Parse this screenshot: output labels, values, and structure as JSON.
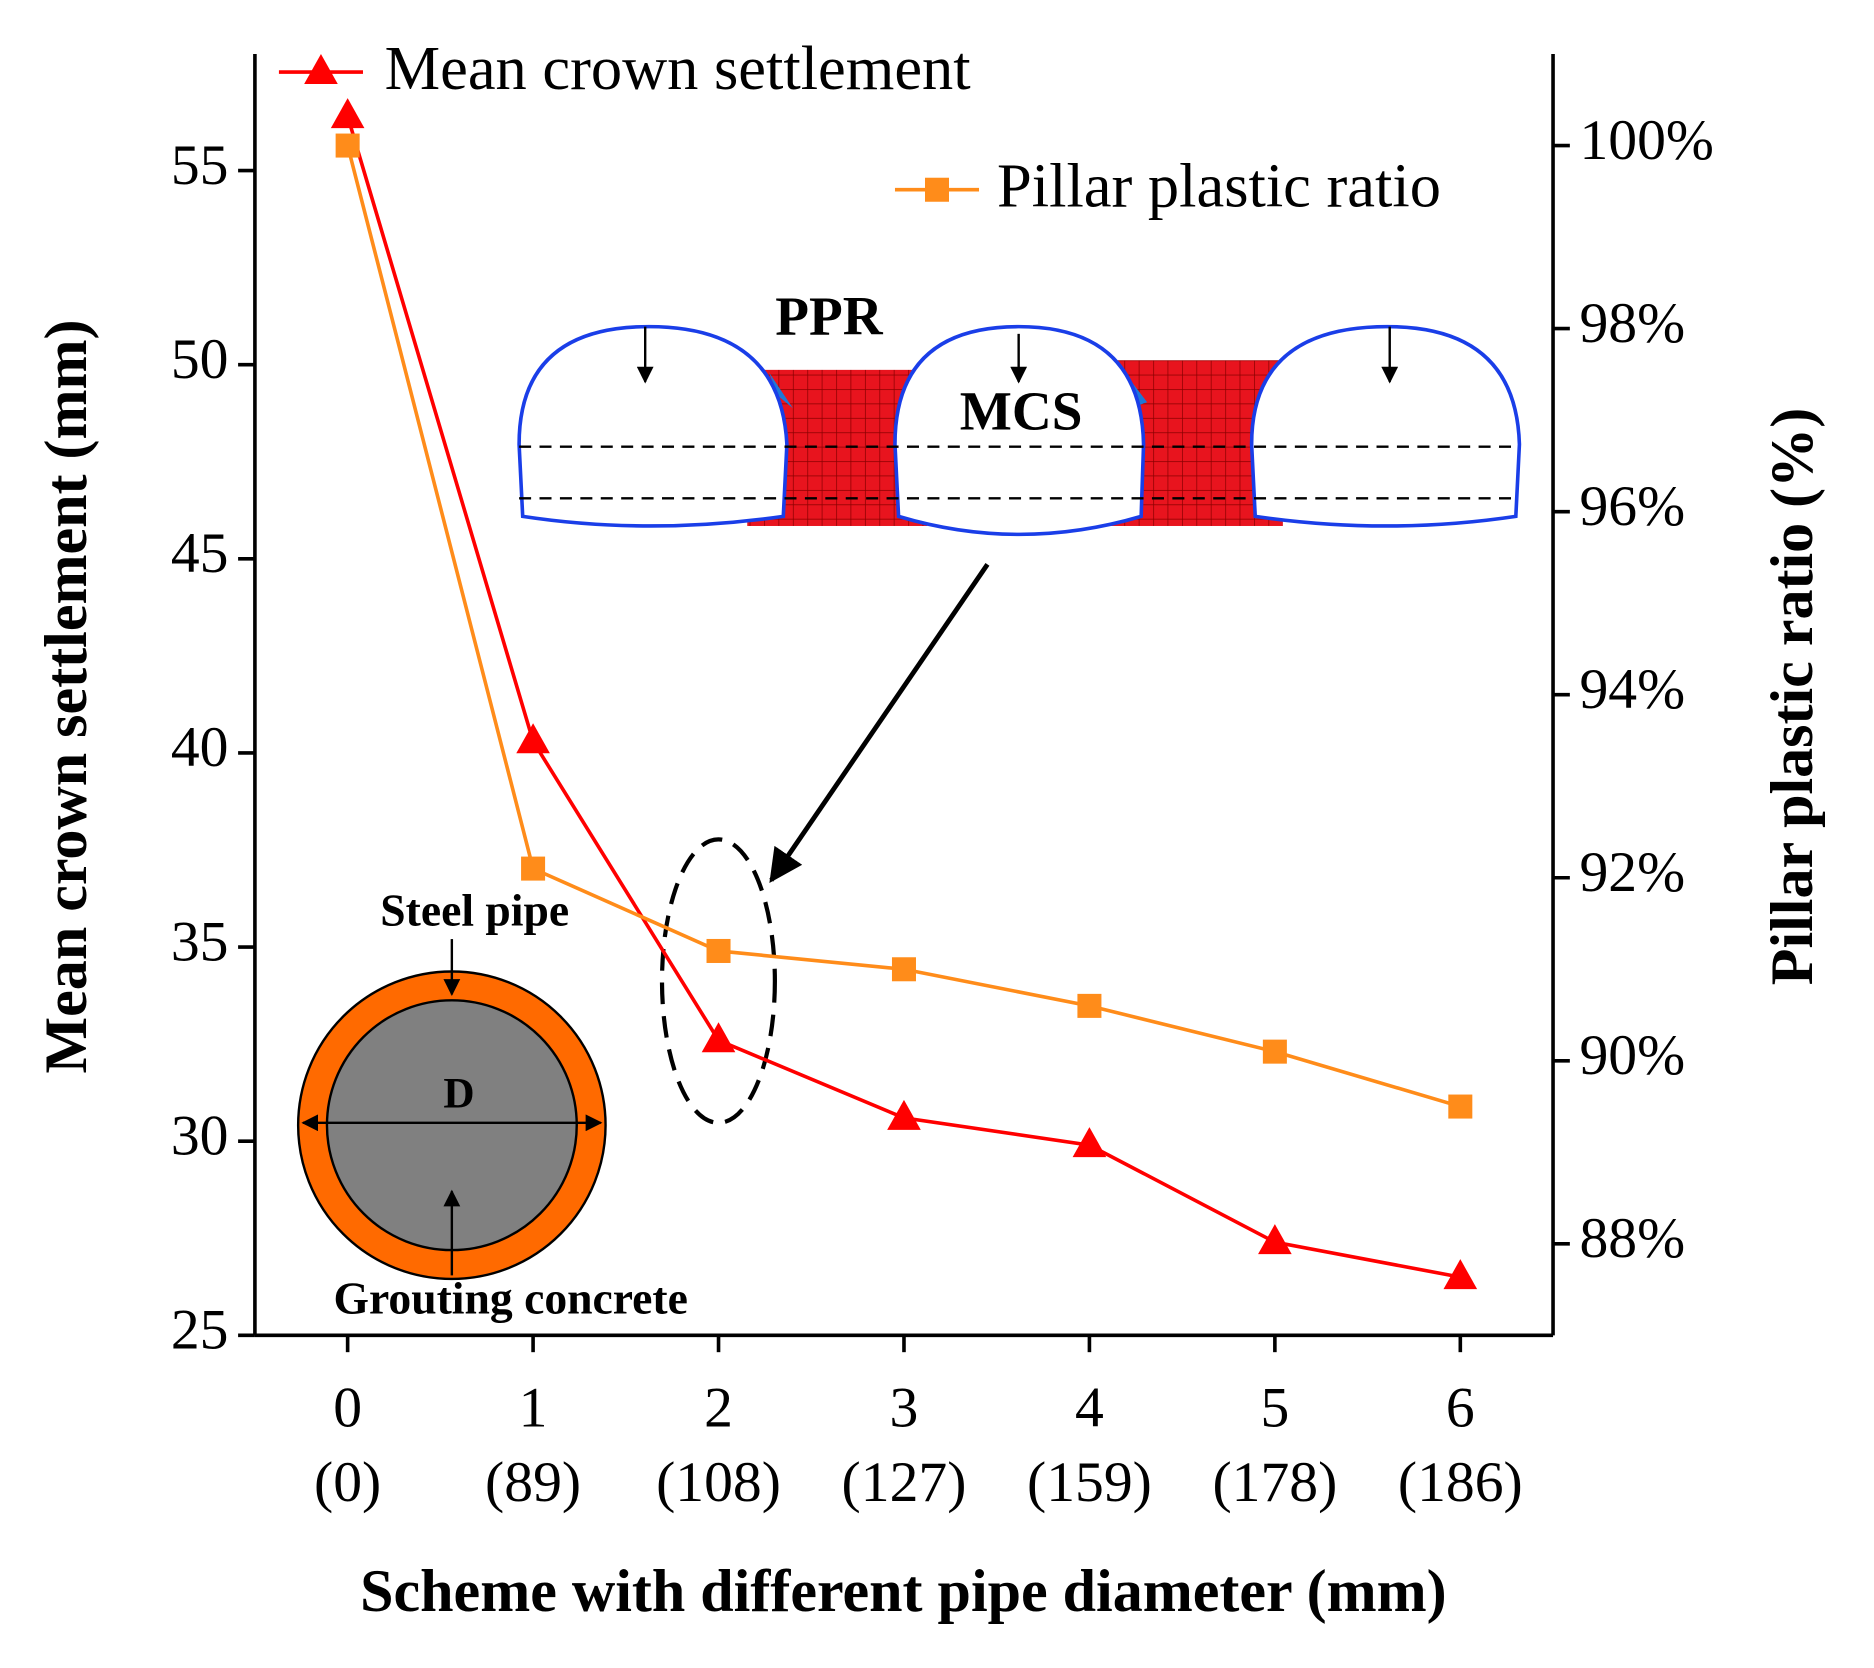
{
  "chart_data": {
    "type": "line",
    "x_label": "Scheme with different pipe diameter (mm)",
    "y_label": "Mean crown settlement (mm)",
    "y2_label": "Pillar plastic ratio (%)",
    "x": [
      0,
      1,
      2,
      3,
      4,
      5,
      6
    ],
    "x_sublabels": [
      "(0)",
      "(89)",
      "(108)",
      "(127)",
      "(159)",
      "(178)",
      "(186)"
    ],
    "xlim": [
      -0.5,
      6.5
    ],
    "xticks": [
      0,
      1,
      2,
      3,
      4,
      5,
      6
    ],
    "ylim": [
      25,
      58
    ],
    "yticks": [
      25,
      30,
      35,
      40,
      45,
      50,
      55
    ],
    "y2lim": [
      87,
      101
    ],
    "y2ticks": [
      {
        "value": 88,
        "label": "88%"
      },
      {
        "value": 90,
        "label": "90%"
      },
      {
        "value": 92,
        "label": "92%"
      },
      {
        "value": 94,
        "label": "94%"
      },
      {
        "value": 96,
        "label": "96%"
      },
      {
        "value": 98,
        "label": "98%"
      },
      {
        "value": 100,
        "label": "100%"
      }
    ],
    "series": [
      {
        "name": "Mean crown settlement",
        "color": "#ff0000",
        "marker": "triangle",
        "values": [
          56.4,
          40.3,
          32.6,
          30.6,
          29.9,
          27.4,
          26.5
        ]
      },
      {
        "name": "Pillar plastic ratio",
        "color": "#ff8c1a",
        "marker": "square",
        "axis": "y2",
        "values": [
          100,
          92.1,
          91.2,
          91.0,
          90.6,
          90.1,
          89.5
        ]
      }
    ],
    "annotations": [
      "PPR",
      "MCS",
      "Steel pipe",
      "D",
      "Grouting concrete"
    ]
  }
}
